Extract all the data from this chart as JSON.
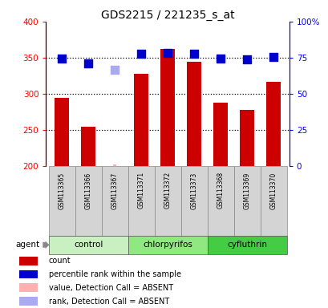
{
  "title": "GDS2215 / 221235_s_at",
  "samples": [
    "GSM113365",
    "GSM113366",
    "GSM113367",
    "GSM113371",
    "GSM113372",
    "GSM113373",
    "GSM113368",
    "GSM113369",
    "GSM113370"
  ],
  "bar_values": [
    295,
    255,
    null,
    328,
    362,
    345,
    288,
    278,
    317
  ],
  "absent_bar_values": [
    null,
    null,
    203,
    null,
    null,
    null,
    null,
    null,
    null
  ],
  "rank_values": [
    349,
    342,
    null,
    356,
    357,
    356,
    349,
    348,
    351
  ],
  "absent_rank_values": [
    null,
    null,
    333,
    null,
    null,
    null,
    null,
    null,
    null
  ],
  "bar_color": "#cc0000",
  "absent_bar_color": "#ffb0b0",
  "rank_color": "#0000cc",
  "absent_rank_color": "#aaaaee",
  "ylim_left": [
    200,
    400
  ],
  "ylim_right": [
    0,
    100
  ],
  "yticks_left": [
    200,
    250,
    300,
    350,
    400
  ],
  "yticks_right": [
    0,
    25,
    50,
    75,
    100
  ],
  "ytick_labels_right": [
    "0",
    "25",
    "50",
    "75",
    "100%"
  ],
  "hlines": [
    250,
    300,
    350
  ],
  "groups": [
    {
      "name": "control",
      "start": 0,
      "end": 3,
      "color": "#c8f0c0"
    },
    {
      "name": "chlorpyrifos",
      "start": 3,
      "end": 6,
      "color": "#90e880"
    },
    {
      "name": "cyfluthrin",
      "start": 6,
      "end": 9,
      "color": "#44cc44"
    }
  ],
  "legend": [
    {
      "label": "count",
      "color": "#cc0000"
    },
    {
      "label": "percentile rank within the sample",
      "color": "#0000cc"
    },
    {
      "label": "value, Detection Call = ABSENT",
      "color": "#ffb0b0"
    },
    {
      "label": "rank, Detection Call = ABSENT",
      "color": "#aaaaee"
    }
  ],
  "bar_width": 0.55,
  "rank_marker_size": 55
}
